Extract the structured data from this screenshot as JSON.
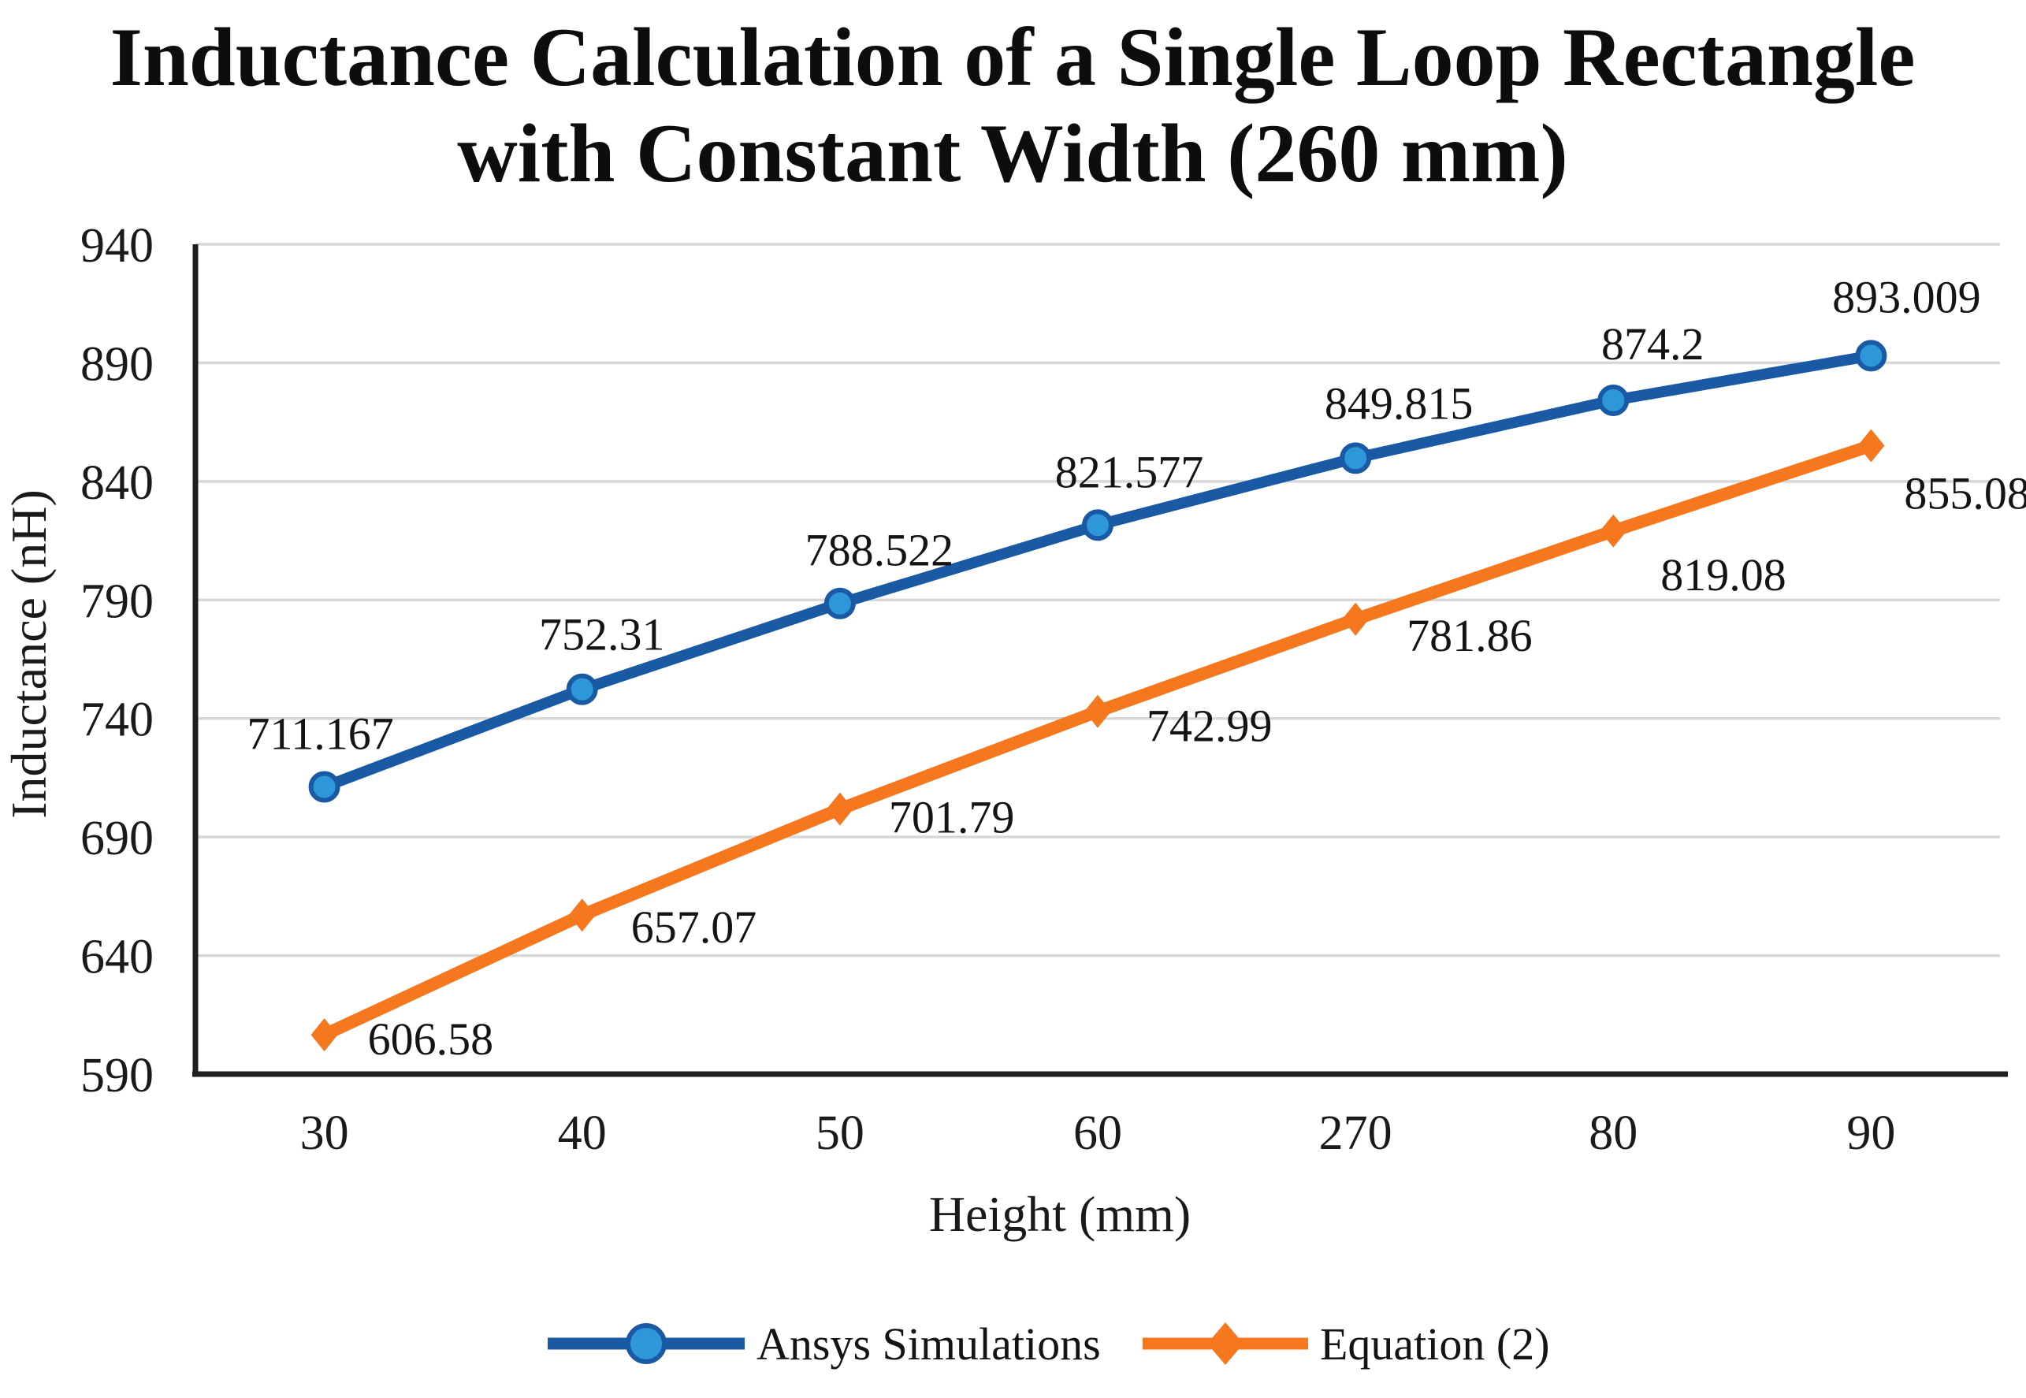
{
  "title": {
    "line1": "Inductance Calculation of a Single Loop Rectangle",
    "line2": "with Constant Width (260 mm)"
  },
  "chart_data": {
    "type": "line",
    "title": "Inductance Calculation of a Single Loop Rectangle with Constant Width (260 mm)",
    "xlabel": "Height (mm)",
    "ylabel": "Inductance (nH)",
    "categories": [
      "30",
      "40",
      "50",
      "60",
      "270",
      "80",
      "90"
    ],
    "series": [
      {
        "name": "Ansys Simulations",
        "color": "#1A5AA5",
        "marker": "circle",
        "marker_fill": "#2E97D9",
        "values": [
          711.167,
          752.31,
          788.522,
          821.577,
          849.815,
          874.2,
          893.009
        ],
        "labels": [
          "711.167",
          "752.31",
          "788.522",
          "821.577",
          "849.815",
          "874.2",
          "893.009"
        ],
        "label_position": "above",
        "label_offsets": [
          [
            -5,
            -48
          ],
          [
            25,
            -50
          ],
          [
            50,
            -48
          ],
          [
            40,
            -48
          ],
          [
            55,
            -50
          ],
          [
            50,
            -52
          ],
          [
            45,
            -55
          ]
        ]
      },
      {
        "name": "Equation (2)",
        "color": "#F5781E",
        "marker": "diamond",
        "marker_fill": "#F5781E",
        "values": [
          606.58,
          657.07,
          701.79,
          742.99,
          781.86,
          819.08,
          855.08
        ],
        "labels": [
          "606.58",
          "657.07",
          "701.79",
          "742.99",
          "781.86",
          "819.08",
          "855.08"
        ],
        "label_position": "below-right",
        "label_offsets": [
          [
            55,
            25
          ],
          [
            62,
            35
          ],
          [
            62,
            30
          ],
          [
            62,
            38
          ],
          [
            65,
            40
          ],
          [
            60,
            75
          ],
          [
            42,
            80
          ]
        ]
      }
    ],
    "ylim": [
      590,
      940
    ],
    "ytick_step": 50,
    "yticks": [
      "940",
      "890",
      "840",
      "790",
      "740",
      "690",
      "640",
      "590"
    ],
    "grid": true,
    "legend_position": "bottom",
    "colors": {
      "gridline": "#D8D8D8",
      "axis_line": "#1f1f1f",
      "background": "#ffffff",
      "text": "#141414"
    }
  }
}
